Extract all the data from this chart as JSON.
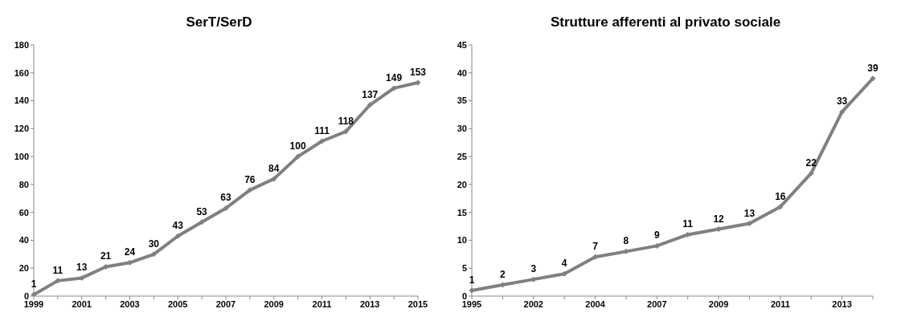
{
  "chart_data": [
    {
      "type": "line",
      "title": "SerT/SerD",
      "categories": [
        "1999",
        null,
        "2001",
        null,
        "2003",
        null,
        "2005",
        null,
        "2007",
        null,
        "2009",
        null,
        "2011",
        null,
        "2013",
        null,
        "2015"
      ],
      "series": [
        {
          "color": "#808080",
          "values": [
            1,
            11,
            13,
            21,
            24,
            30,
            43,
            53,
            63,
            76,
            84,
            100,
            111,
            118,
            137,
            149,
            153
          ]
        }
      ],
      "ylim": [
        0,
        180
      ],
      "yticks": [
        0,
        20,
        40,
        60,
        80,
        100,
        120,
        140,
        160,
        180
      ],
      "data_labels": true,
      "marker": "diamond"
    },
    {
      "type": "line",
      "title": "Strutture afferenti al privato sociale",
      "categories": [
        "1995",
        null,
        "2002",
        null,
        "2004",
        null,
        "2007",
        null,
        "2009",
        null,
        "2011",
        null,
        "2013",
        null
      ],
      "series": [
        {
          "color": "#808080",
          "values": [
            1,
            2,
            3,
            4,
            7,
            8,
            9,
            11,
            12,
            13,
            16,
            22,
            33,
            39
          ]
        }
      ],
      "ylim": [
        0,
        45
      ],
      "yticks": [
        0,
        5,
        10,
        15,
        20,
        25,
        30,
        35,
        40,
        45
      ],
      "data_labels": true,
      "marker": "diamond"
    }
  ]
}
